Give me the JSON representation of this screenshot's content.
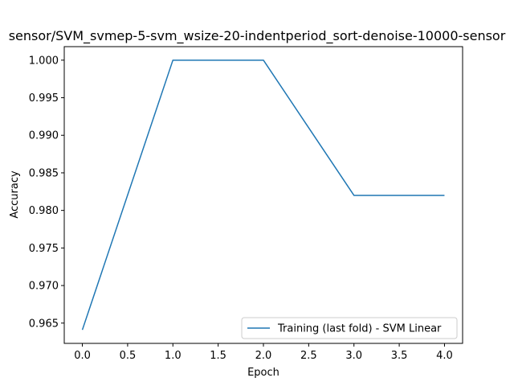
{
  "chart_data": {
    "type": "line",
    "title": "sensor/SVM_svmep-5-svm_wsize-20-indentperiod_sort-denoise-10000-sensor",
    "xlabel": "Epoch",
    "ylabel": "Accuracy",
    "xlim": [
      -0.2,
      4.2
    ],
    "ylim": [
      0.9623,
      1.0018
    ],
    "xticks": [
      0.0,
      0.5,
      1.0,
      1.5,
      2.0,
      2.5,
      3.0,
      3.5,
      4.0
    ],
    "xtick_labels": [
      "0.0",
      "0.5",
      "1.0",
      "1.5",
      "2.0",
      "2.5",
      "3.0",
      "3.5",
      "4.0"
    ],
    "yticks": [
      0.965,
      0.97,
      0.975,
      0.98,
      0.985,
      0.99,
      0.995,
      1.0
    ],
    "ytick_labels": [
      "0.965",
      "0.970",
      "0.975",
      "0.980",
      "0.985",
      "0.990",
      "0.995",
      "1.000"
    ],
    "grid": false,
    "legend_position": "lower-right",
    "series": [
      {
        "name": "Training (last fold) - SVM Linear",
        "color": "#1f77b4",
        "x": [
          0,
          1,
          2,
          3,
          4
        ],
        "y": [
          0.9641,
          1.0,
          1.0,
          0.982,
          0.982
        ]
      }
    ]
  }
}
